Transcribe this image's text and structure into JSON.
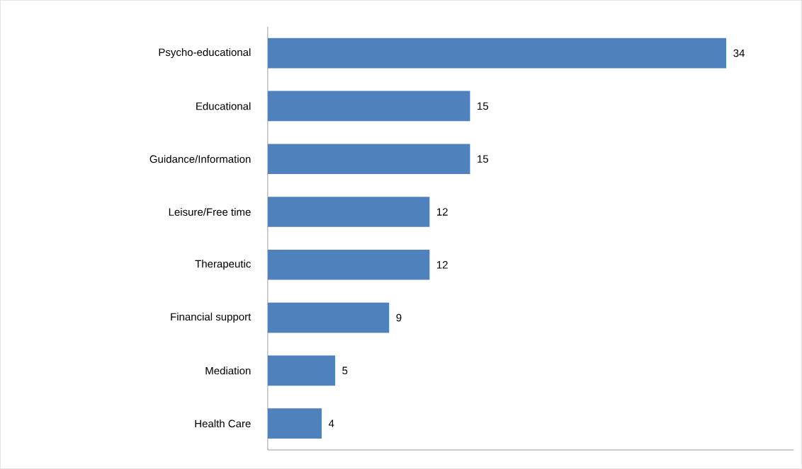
{
  "chart_data": {
    "type": "bar",
    "orientation": "horizontal",
    "categories": [
      "Psycho-educational",
      "Educational",
      "Guidance/Information",
      "Leisure/Free time",
      "Therapeutic",
      "Financial support",
      "Mediation",
      "Health Care"
    ],
    "values": [
      34,
      15,
      15,
      12,
      12,
      9,
      5,
      4
    ],
    "color": "#4f81bd",
    "data_labels": true
  }
}
